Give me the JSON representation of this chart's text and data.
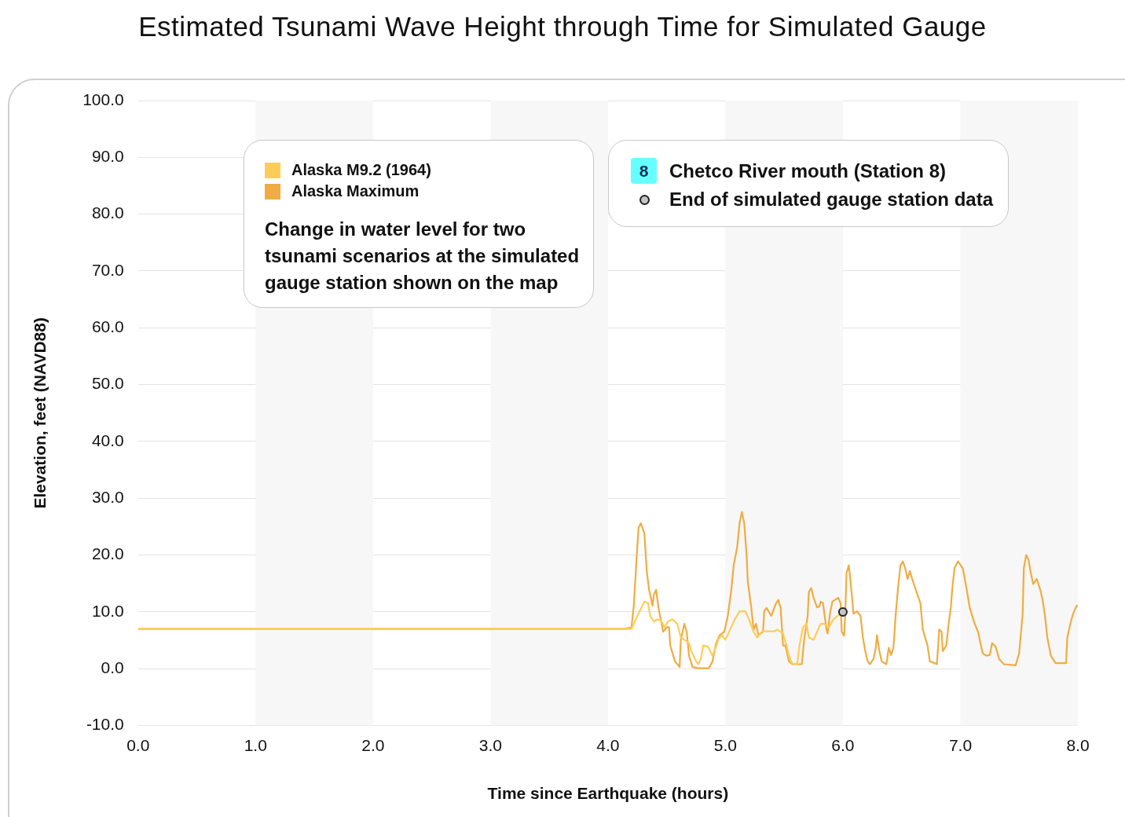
{
  "chart_data": {
    "type": "line",
    "title": "Estimated Tsunami Wave Height through Time for Simulated Gauge",
    "xlabel": "Time since Earthquake (hours)",
    "ylabel": "Elevation, feet (NAVD88)",
    "annotations": [
      "Change in water level for two tsunami scenarios at the simulated gauge station shown on the map",
      "8",
      "Chetco River mouth (Station 8)"
    ],
    "xlim": [
      0,
      8
    ],
    "ylim": [
      -10,
      100
    ],
    "xticks": [
      {
        "value": 0,
        "label": "0.0"
      },
      {
        "value": 1,
        "label": "1.0"
      },
      {
        "value": 2,
        "label": "2.0"
      },
      {
        "value": 3,
        "label": "3.0"
      },
      {
        "value": 4,
        "label": "4.0"
      },
      {
        "value": 5,
        "label": "5.0"
      },
      {
        "value": 6,
        "label": "6.0"
      },
      {
        "value": 7,
        "label": "7.0"
      },
      {
        "value": 8,
        "label": "8.0"
      }
    ],
    "yticks": [
      {
        "value": -10,
        "label": "-10.0"
      },
      {
        "value": 0,
        "label": "0.0"
      },
      {
        "value": 10,
        "label": "10.0"
      },
      {
        "value": 20,
        "label": "20.0"
      },
      {
        "value": 30,
        "label": "30.0"
      },
      {
        "value": 40,
        "label": "40.0"
      },
      {
        "value": 50,
        "label": "50.0"
      },
      {
        "value": 60,
        "label": "60.0"
      },
      {
        "value": 70,
        "label": "70.0"
      },
      {
        "value": 80,
        "label": "80.0"
      },
      {
        "value": 90,
        "label": "90.0"
      },
      {
        "value": 100,
        "label": "100.0"
      }
    ],
    "grid": "y",
    "legend": "top",
    "marker": "none",
    "line_style": "solid",
    "bands": [
      {
        "axis": "x",
        "from": 1,
        "to": 2,
        "color": "#f7f7f7"
      },
      {
        "axis": "x",
        "from": 3,
        "to": 4,
        "color": "#f7f7f7"
      },
      {
        "axis": "x",
        "from": 5,
        "to": 6,
        "color": "#f7f7f7"
      },
      {
        "axis": "x",
        "from": 7,
        "to": 8,
        "color": "#f7f7f7"
      }
    ],
    "series": [
      {
        "name": "Alaska M9.2 (1964)",
        "color": "#ffcd57",
        "x": [
          0,
          4.2,
          4.25,
          4.31,
          4.34,
          4.36,
          4.39,
          4.42,
          4.45,
          4.48,
          4.51,
          4.55,
          4.59,
          4.62,
          4.65,
          4.69,
          4.71,
          4.75,
          4.77,
          4.79,
          4.81,
          4.85,
          4.89,
          4.92,
          4.94,
          4.97,
          5.0,
          5.04,
          5.08,
          5.12,
          5.17,
          5.2,
          5.24,
          5.27,
          5.31,
          5.33,
          5.42,
          5.44,
          5.49,
          5.52,
          5.54,
          5.57,
          5.61,
          5.63,
          5.66,
          5.69,
          5.71,
          5.75,
          5.78,
          5.81,
          5.84,
          5.88,
          5.9,
          5.92,
          5.96,
          6.0
        ],
        "values": [
          7.0,
          7.0,
          9.3,
          11.8,
          11.6,
          9.3,
          8.3,
          8.7,
          8.5,
          7.3,
          8.3,
          8.7,
          7.9,
          5.5,
          5.1,
          4.5,
          3.1,
          1.3,
          0.8,
          1.7,
          4.1,
          3.9,
          2.3,
          3.9,
          5.2,
          5.9,
          5.1,
          6.9,
          8.7,
          10.1,
          10.1,
          8.7,
          6.5,
          5.5,
          6.5,
          6.6,
          6.6,
          6.9,
          6.2,
          4.1,
          2.3,
          0.8,
          0.8,
          4.1,
          7.3,
          7.9,
          5.5,
          5.1,
          6.5,
          7.9,
          7.9,
          7.3,
          8.0,
          8.7,
          9.4,
          10.0
        ]
      },
      {
        "name": "Alaska Maximum",
        "color": "#f0ac42",
        "x": [
          0,
          4.14,
          4.2,
          4.22,
          4.24,
          4.26,
          4.28,
          4.31,
          4.33,
          4.35,
          4.38,
          4.39,
          4.41,
          4.43,
          4.47,
          4.5,
          4.52,
          4.53,
          4.57,
          4.61,
          4.62,
          4.65,
          4.67,
          4.69,
          4.72,
          4.77,
          4.86,
          4.89,
          4.92,
          4.95,
          4.99,
          5.02,
          5.05,
          5.07,
          5.1,
          5.12,
          5.14,
          5.16,
          5.18,
          5.19,
          5.22,
          5.24,
          5.26,
          5.28,
          5.32,
          5.33,
          5.35,
          5.39,
          5.43,
          5.45,
          5.47,
          5.49,
          5.51,
          5.54,
          5.57,
          5.65,
          5.67,
          5.7,
          5.71,
          5.73,
          5.75,
          5.78,
          5.8,
          5.81,
          5.83,
          5.86,
          5.87,
          5.89,
          5.91,
          5.96,
          5.98,
          5.99,
          6.01,
          6.02,
          6.03,
          6.05,
          6.06,
          6.08,
          6.09,
          6.12,
          6.15,
          6.17,
          6.19,
          6.21,
          6.23,
          6.26,
          6.28,
          6.29,
          6.31,
          6.33,
          6.37,
          6.39,
          6.41,
          6.43,
          6.45,
          6.47,
          6.49,
          6.51,
          6.53,
          6.55,
          6.57,
          6.59,
          6.62,
          6.66,
          6.68,
          6.72,
          6.74,
          6.8,
          6.82,
          6.84,
          6.85,
          6.88,
          6.9,
          6.92,
          6.93,
          6.95,
          6.98,
          7.02,
          7.05,
          7.08,
          7.12,
          7.15,
          7.19,
          7.22,
          7.25,
          7.27,
          7.3,
          7.33,
          7.37,
          7.47,
          7.5,
          7.53,
          7.54,
          7.56,
          7.58,
          7.6,
          7.62,
          7.65,
          7.68,
          7.7,
          7.72,
          7.74,
          7.77,
          7.81,
          7.9,
          7.91,
          7.94,
          7.96,
          7.99,
          8.0
        ],
        "values": [
          7.0,
          7.0,
          7.3,
          11.1,
          18.2,
          24.8,
          25.6,
          23.8,
          17.2,
          13.9,
          11.1,
          13.0,
          13.9,
          10.7,
          6.5,
          7.3,
          7.3,
          4.1,
          1.3,
          0.3,
          5.1,
          7.9,
          6.5,
          2.3,
          0.3,
          0.1,
          0.1,
          1.3,
          4.5,
          5.9,
          6.5,
          9.3,
          13.9,
          18.2,
          21.4,
          25.6,
          27.6,
          25.6,
          20.0,
          15.4,
          10.7,
          6.9,
          7.9,
          5.9,
          6.5,
          10.1,
          10.7,
          9.3,
          11.5,
          12.1,
          10.7,
          4.1,
          4.1,
          1.3,
          0.8,
          0.8,
          5.1,
          9.3,
          13.5,
          14.2,
          12.5,
          10.8,
          11.0,
          11.8,
          11.6,
          6.9,
          6.2,
          9.7,
          11.8,
          12.5,
          11.5,
          6.5,
          5.8,
          9.7,
          16.8,
          18.2,
          16.3,
          12.1,
          9.7,
          10.1,
          9.3,
          5.5,
          3.1,
          1.3,
          0.8,
          1.7,
          3.7,
          5.9,
          3.1,
          1.3,
          0.8,
          3.7,
          2.4,
          3.7,
          9.7,
          14.4,
          18.2,
          18.9,
          17.7,
          15.8,
          17.2,
          15.8,
          13.9,
          11.5,
          6.9,
          4.1,
          1.3,
          0.8,
          6.9,
          6.5,
          3.1,
          4.1,
          7.9,
          11.1,
          13.9,
          17.7,
          18.9,
          17.7,
          14.4,
          10.7,
          8.0,
          6.5,
          2.7,
          2.3,
          2.4,
          4.5,
          3.9,
          1.7,
          0.8,
          0.6,
          2.7,
          9.7,
          17.7,
          20.0,
          19.2,
          16.8,
          14.9,
          15.8,
          13.9,
          12.1,
          9.3,
          5.5,
          2.3,
          1.0,
          1.0,
          5.5,
          8.3,
          9.7,
          11.1,
          11.0
        ]
      },
      {
        "name": "End of simulated gauge station data",
        "color": "#c4c4c4",
        "type": "scatter",
        "marker": "circle",
        "x": [
          6.0
        ],
        "values": [
          10.0
        ]
      }
    ]
  }
}
